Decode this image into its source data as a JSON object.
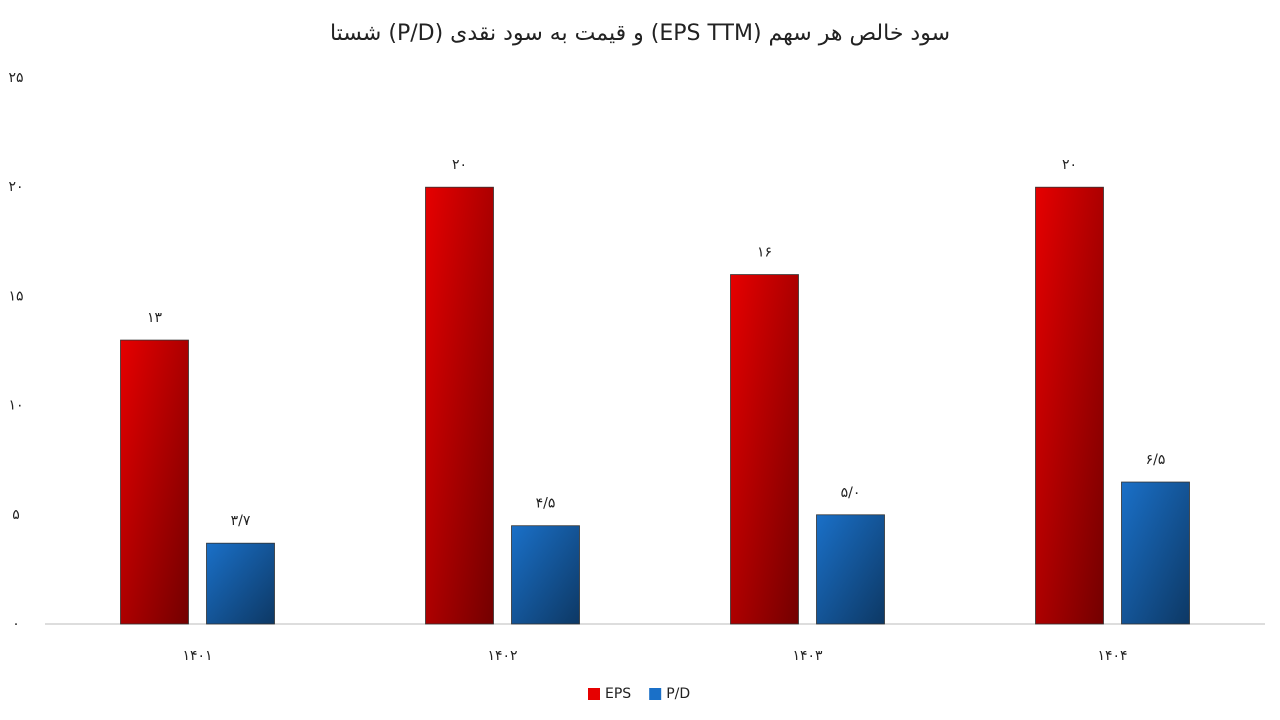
{
  "chart_data": {
    "type": "bar",
    "title": "سود خالص هر سهم (EPS TTM) و قیمت به سود نقدی (P/D) شستا",
    "categories": [
      "۱۴۰۱",
      "۱۴۰۲",
      "۱۴۰۳",
      "۱۴۰۴"
    ],
    "series": [
      {
        "name": "EPS",
        "color": "#e60000",
        "values": [
          13,
          20,
          16,
          20
        ],
        "value_labels": [
          "۱۳",
          "۲۰",
          "۱۶",
          "۲۰"
        ]
      },
      {
        "name": "P/D",
        "color": "#1a70c8",
        "values": [
          3.7,
          4.5,
          5.0,
          6.5
        ],
        "value_labels": [
          "۳/۷",
          "۴/۵",
          "۵/۰",
          "۶/۵"
        ]
      }
    ],
    "ylim": [
      0,
      25
    ],
    "yticks": [
      {
        "value": 0,
        "label": "۰"
      },
      {
        "value": 5,
        "label": "۵"
      },
      {
        "value": 10,
        "label": "۱۰"
      },
      {
        "value": 15,
        "label": "۱۵"
      },
      {
        "value": 20,
        "label": "۲۰"
      },
      {
        "value": 25,
        "label": "۲۵"
      }
    ],
    "grid": false,
    "legend": "bottom"
  }
}
